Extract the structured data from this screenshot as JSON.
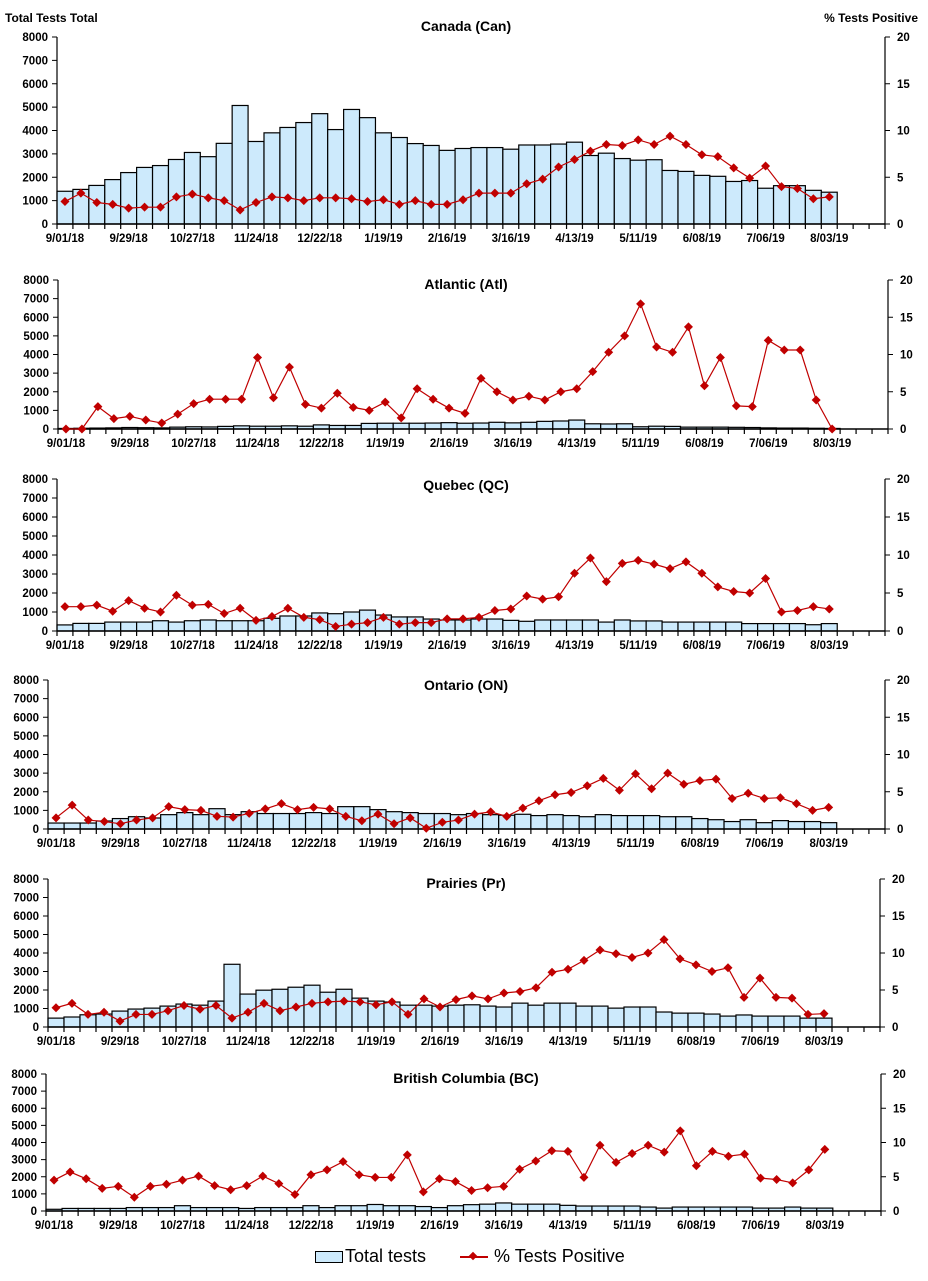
{
  "colors": {
    "bar_fill": "#cdeafc",
    "bar_stroke": "#000000",
    "line": "#c00000"
  },
  "left_axis_header": "Total Tests Total",
  "right_axis_header": "% Tests Positive",
  "legend": {
    "bars": "Total tests",
    "line": "% Tests Positive",
    "position": "bottom"
  },
  "categories": [
    "9/01/18",
    "9/08/18",
    "9/15/18",
    "9/22/18",
    "9/29/18",
    "10/06/18",
    "10/13/18",
    "10/20/18",
    "10/27/18",
    "11/03/18",
    "11/10/18",
    "11/17/18",
    "11/24/18",
    "12/01/18",
    "12/08/18",
    "12/15/18",
    "12/22/18",
    "12/29/18",
    "1/05/19",
    "1/12/19",
    "1/19/19",
    "1/26/19",
    "2/02/19",
    "2/09/19",
    "2/16/19",
    "2/23/19",
    "3/02/19",
    "3/09/19",
    "3/16/19",
    "3/23/19",
    "3/30/19",
    "4/06/19",
    "4/13/19",
    "4/20/19",
    "4/27/19",
    "5/04/19",
    "5/11/19",
    "5/18/19",
    "5/25/19",
    "6/01/19",
    "6/08/19",
    "6/15/19",
    "6/22/19",
    "6/29/19",
    "7/06/19",
    "7/13/19",
    "7/20/19",
    "7/27/19",
    "8/03/19"
  ],
  "x_tick_labels": [
    "9/01/18",
    "9/29/18",
    "10/27/18",
    "11/24/18",
    "12/22/18",
    "1/19/19",
    "2/16/19",
    "3/16/19",
    "4/13/19",
    "5/11/19",
    "6/08/19",
    "7/06/19",
    "8/03/19"
  ],
  "y_left_ticks": [
    "0",
    "1000",
    "2000",
    "3000",
    "4000",
    "5000",
    "6000",
    "7000",
    "8000"
  ],
  "y_right_ticks": [
    "0",
    "5",
    "10",
    "15",
    "20"
  ],
  "chart_data": [
    {
      "type": "bar+line",
      "title": "Canada (Can)",
      "ylim": [
        0,
        8000
      ],
      "y2lim": [
        0,
        20
      ],
      "series": [
        {
          "name": "Total tests",
          "type": "bar",
          "values": [
            1400,
            1480,
            1650,
            1900,
            2200,
            2420,
            2500,
            2760,
            3060,
            2880,
            3450,
            5070,
            3530,
            3900,
            4130,
            4340,
            4720,
            4040,
            4900,
            4550,
            3900,
            3700,
            3440,
            3360,
            3150,
            3230,
            3270,
            3270,
            3200,
            3380,
            3380,
            3420,
            3500,
            2930,
            3030,
            2800,
            2730,
            2750,
            2290,
            2250,
            2080,
            2040,
            1820,
            1860,
            1530,
            1640,
            1640,
            1440,
            1360
          ]
        },
        {
          "name": "% Tests Positive",
          "type": "line",
          "axis": "right",
          "values": [
            2.4,
            3.3,
            2.3,
            2.1,
            1.7,
            1.8,
            1.8,
            2.9,
            3.2,
            2.8,
            2.5,
            1.5,
            2.3,
            2.9,
            2.8,
            2.5,
            2.8,
            2.8,
            2.7,
            2.4,
            2.6,
            2.1,
            2.5,
            2.1,
            2.1,
            2.6,
            3.3,
            3.3,
            3.3,
            4.3,
            4.8,
            6.1,
            6.9,
            7.8,
            8.5,
            8.4,
            9.0,
            8.5,
            9.4,
            8.5,
            7.4,
            7.2,
            6.0,
            4.9,
            6.2,
            4.0,
            3.8,
            2.7,
            2.9
          ]
        }
      ]
    },
    {
      "type": "bar+line",
      "title": "Atlantic (Atl)",
      "ylim": [
        0,
        8000
      ],
      "y2lim": [
        0,
        20
      ],
      "series": [
        {
          "name": "Total tests",
          "type": "bar",
          "values": [
            30,
            40,
            50,
            60,
            80,
            70,
            60,
            100,
            120,
            110,
            140,
            170,
            150,
            150,
            170,
            150,
            220,
            190,
            190,
            300,
            310,
            310,
            310,
            320,
            340,
            310,
            320,
            360,
            330,
            360,
            410,
            430,
            480,
            280,
            270,
            280,
            120,
            150,
            140,
            100,
            100,
            100,
            90,
            80,
            60,
            50,
            50,
            40,
            30
          ]
        },
        {
          "name": "% Tests Positive",
          "type": "line",
          "axis": "right",
          "values": [
            0,
            0,
            3.0,
            1.4,
            1.7,
            1.2,
            0.8,
            2.0,
            3.4,
            4.0,
            4.0,
            4.0,
            9.6,
            4.2,
            8.3,
            3.3,
            2.8,
            4.8,
            2.9,
            2.5,
            3.6,
            1.5,
            5.4,
            4.0,
            2.8,
            2.1,
            6.8,
            5.0,
            3.9,
            4.4,
            3.9,
            5.0,
            5.4,
            7.7,
            10.3,
            12.5,
            16.8,
            11.0,
            10.3,
            13.7,
            5.8,
            9.6,
            3.1,
            3.0,
            11.9,
            10.6,
            10.6,
            3.9,
            0
          ]
        }
      ]
    },
    {
      "type": "bar+line",
      "title": "Quebec (QC)",
      "ylim": [
        0,
        8000
      ],
      "y2lim": [
        0,
        20
      ],
      "series": [
        {
          "name": "Total tests",
          "type": "bar",
          "values": [
            320,
            400,
            400,
            470,
            470,
            470,
            540,
            470,
            540,
            580,
            540,
            540,
            540,
            670,
            790,
            790,
            950,
            910,
            1000,
            1100,
            840,
            740,
            740,
            630,
            580,
            580,
            630,
            630,
            560,
            510,
            580,
            580,
            580,
            580,
            470,
            580,
            530,
            530,
            470,
            470,
            470,
            470,
            470,
            390,
            390,
            390,
            390,
            330,
            390
          ]
        },
        {
          "name": "% Tests Positive",
          "type": "line",
          "axis": "right",
          "values": [
            3.2,
            3.2,
            3.4,
            2.6,
            4.0,
            3.0,
            2.5,
            4.7,
            3.4,
            3.5,
            2.3,
            3.0,
            1.4,
            1.9,
            3.0,
            1.8,
            1.5,
            0.6,
            0.9,
            1.1,
            1.8,
            0.9,
            1.1,
            1.1,
            1.6,
            1.6,
            1.8,
            2.7,
            2.9,
            4.6,
            4.2,
            4.5,
            7.6,
            9.6,
            6.5,
            8.9,
            9.3,
            8.8,
            8.2,
            9.1,
            7.6,
            5.8,
            5.2,
            5.0,
            6.9,
            2.5,
            2.7,
            3.2,
            2.9
          ]
        }
      ]
    },
    {
      "type": "bar+line",
      "title": "Ontario (ON)",
      "ylim": [
        0,
        8000
      ],
      "y2lim": [
        0,
        20
      ],
      "series": [
        {
          "name": "Total tests",
          "type": "bar",
          "values": [
            320,
            320,
            320,
            430,
            560,
            660,
            590,
            770,
            880,
            770,
            1090,
            770,
            930,
            830,
            830,
            830,
            880,
            830,
            1200,
            1200,
            1040,
            930,
            880,
            830,
            830,
            770,
            830,
            770,
            740,
            790,
            720,
            770,
            720,
            660,
            770,
            720,
            720,
            720,
            660,
            660,
            560,
            500,
            400,
            500,
            340,
            450,
            400,
            400,
            340
          ]
        },
        {
          "name": "% Tests Positive",
          "type": "line",
          "axis": "right",
          "values": [
            1.5,
            3.2,
            1.2,
            1.0,
            0.7,
            1.2,
            1.5,
            3.0,
            2.6,
            2.5,
            1.7,
            1.6,
            2.1,
            2.7,
            3.4,
            2.6,
            2.9,
            2.7,
            1.7,
            1.1,
            2.0,
            0.7,
            1.5,
            0.1,
            0.9,
            1.2,
            2.0,
            2.3,
            1.7,
            2.8,
            3.8,
            4.6,
            4.9,
            5.8,
            6.8,
            5.2,
            7.4,
            5.4,
            7.5,
            6.0,
            6.5,
            6.7,
            4.1,
            4.8,
            4.1,
            4.2,
            3.4,
            2.5,
            2.9
          ]
        }
      ]
    },
    {
      "type": "bar+line",
      "title": "Prairies (Pr)",
      "ylim": [
        0,
        8000
      ],
      "y2lim": [
        0,
        20
      ],
      "series": [
        {
          "name": "Total tests",
          "type": "bar",
          "values": [
            480,
            540,
            660,
            700,
            860,
            970,
            1020,
            1130,
            1240,
            1180,
            1400,
            3390,
            1780,
            1990,
            2040,
            2150,
            2260,
            1880,
            2040,
            1560,
            1400,
            1350,
            1180,
            1180,
            1130,
            1180,
            1200,
            1130,
            1080,
            1290,
            1180,
            1290,
            1290,
            1130,
            1130,
            1020,
            1080,
            1080,
            810,
            750,
            750,
            700,
            590,
            650,
            590,
            590,
            590,
            480,
            480
          ]
        },
        {
          "name": "% Tests Positive",
          "type": "line",
          "axis": "right",
          "values": [
            2.6,
            3.2,
            1.7,
            2.0,
            0.8,
            1.7,
            1.7,
            2.2,
            2.9,
            2.4,
            2.9,
            1.2,
            2.0,
            3.2,
            2.2,
            2.7,
            3.2,
            3.4,
            3.5,
            3.4,
            3.0,
            3.4,
            1.7,
            3.8,
            2.7,
            3.7,
            4.2,
            3.8,
            4.6,
            4.8,
            5.3,
            7.4,
            7.8,
            9.0,
            10.4,
            9.9,
            9.4,
            10.0,
            11.8,
            9.2,
            8.4,
            7.5,
            8.0,
            4.0,
            6.6,
            4.0,
            3.9,
            1.7,
            1.8
          ]
        }
      ]
    },
    {
      "type": "bar+line",
      "title": "British Columbia (BC)",
      "ylim": [
        0,
        8000
      ],
      "y2lim": [
        0,
        20
      ],
      "series": [
        {
          "name": "Total tests",
          "type": "bar",
          "values": [
            100,
            150,
            150,
            150,
            150,
            200,
            200,
            200,
            310,
            200,
            200,
            200,
            150,
            200,
            200,
            200,
            310,
            200,
            310,
            310,
            380,
            310,
            310,
            260,
            200,
            310,
            370,
            400,
            470,
            400,
            400,
            400,
            330,
            290,
            290,
            290,
            290,
            230,
            170,
            230,
            230,
            230,
            230,
            230,
            170,
            170,
            230,
            170,
            170
          ]
        },
        {
          "name": "% Tests Positive",
          "type": "line",
          "axis": "right",
          "values": [
            4.5,
            5.7,
            4.7,
            3.3,
            3.6,
            2.0,
            3.6,
            3.9,
            4.5,
            5.1,
            3.7,
            3.1,
            3.7,
            5.1,
            4.0,
            2.4,
            5.3,
            6.0,
            7.2,
            5.3,
            4.9,
            4.9,
            8.2,
            2.8,
            4.7,
            4.3,
            3.0,
            3.4,
            3.6,
            6.1,
            7.3,
            8.8,
            8.7,
            4.9,
            9.6,
            7.1,
            8.4,
            9.6,
            8.6,
            11.7,
            6.6,
            8.7,
            8.0,
            8.3,
            4.8,
            4.6,
            4.1,
            6.0,
            9.0
          ]
        }
      ]
    }
  ]
}
